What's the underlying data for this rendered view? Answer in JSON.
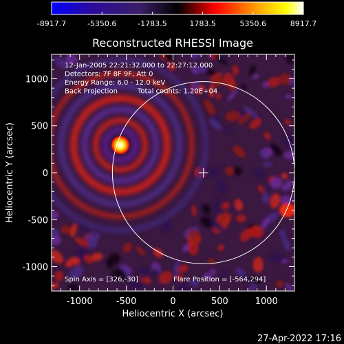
{
  "colorbar": {
    "tick_labels": [
      "-8917.7",
      "-5350.6",
      "-1783.5",
      "1783.5",
      "5350.6",
      "8917.7"
    ],
    "min": -8917.7,
    "max": 8917.7,
    "colors": [
      "#0000ff",
      "#2a0aa0",
      "#3b1f66",
      "#000000",
      "#ff0000",
      "#ffa500",
      "#ffff00",
      "#ffffff"
    ]
  },
  "chart_data": {
    "type": "heatmap",
    "title": "Reconstructed RHESSI Image",
    "xlabel": "Heliocentric X (arcsec)",
    "ylabel": "Heliocentric Y (arcsec)",
    "xlim": [
      -1300,
      1300
    ],
    "ylim": [
      -1260,
      1260
    ],
    "x_ticks": [
      -1000,
      -500,
      0,
      500,
      1000
    ],
    "y_ticks": [
      1000,
      500,
      0,
      -500,
      -1000
    ],
    "solar_radius_arcsec": 975,
    "source": {
      "x": -564,
      "y": 294
    },
    "center_marker": {
      "x": 326,
      "y": 0
    },
    "annotations": [
      "12-Jan-2005 22:21:32.000 to 22:27:12.000",
      "Detectors: 7F 8F 9F, Att 0",
      "Energy Range: 6.0 - 12.0 keV",
      "Back Projection",
      "Total counts: 1.20E+04"
    ],
    "spin_axis": "Spin Axis = [326,-30]",
    "flare_position": "Flare Position = [-564,294]"
  },
  "footer": {
    "timestamp": "27-Apr-2022 17:16"
  }
}
